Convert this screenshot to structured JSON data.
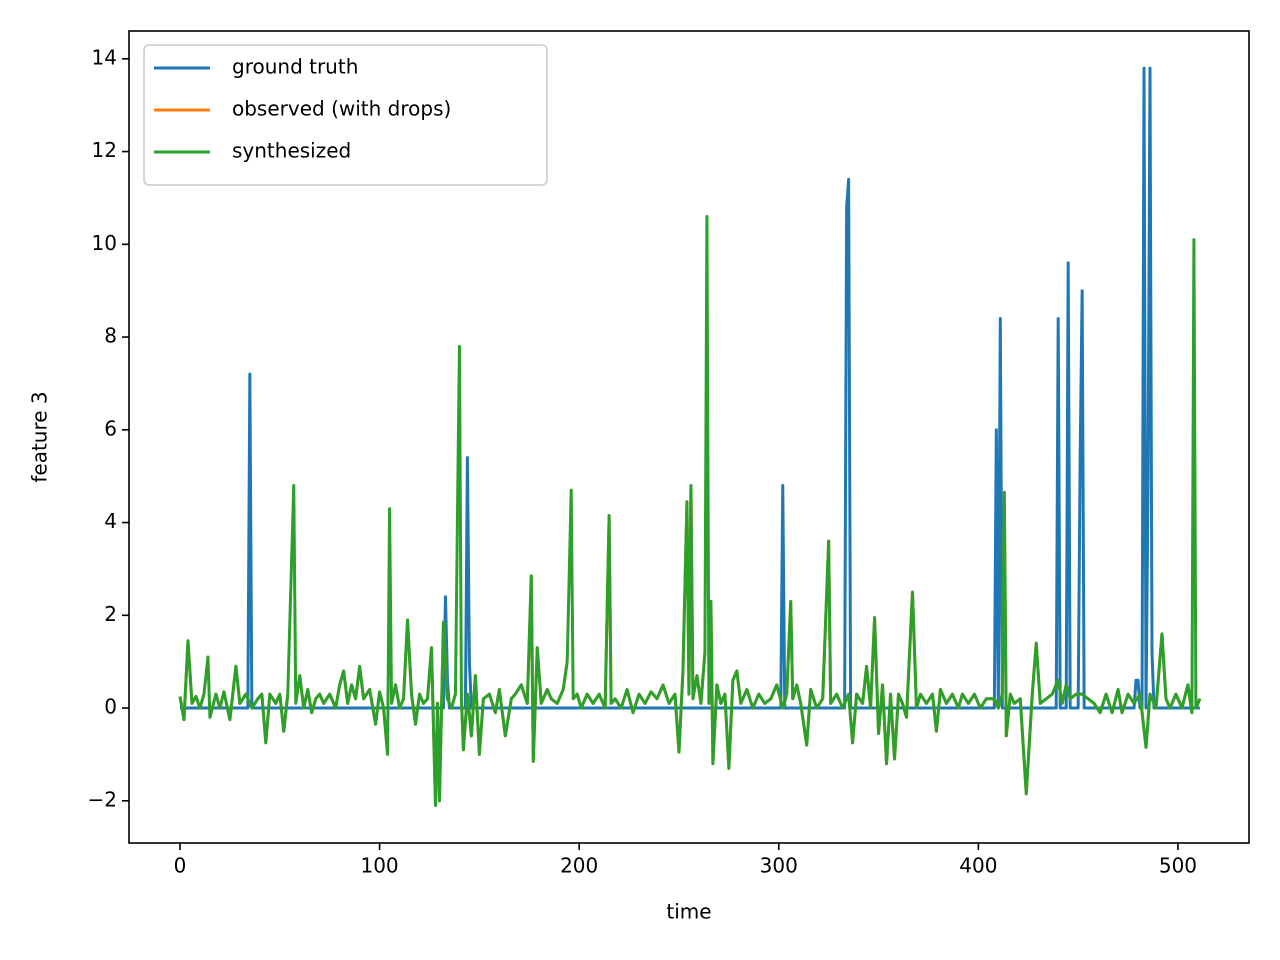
{
  "chart_data": {
    "type": "line",
    "x_label": "time",
    "y_label": "feature 3",
    "xlim": [
      -25.55,
      535.6
    ],
    "ylim": [
      -2.91,
      14.6
    ],
    "xticks": [
      0,
      100,
      200,
      300,
      400,
      500
    ],
    "yticks": [
      {
        "value": -2,
        "label": "−2"
      },
      0,
      2,
      4,
      6,
      8,
      10,
      12,
      14
    ],
    "legend": "upper left",
    "grid": false,
    "series": [
      {
        "name": "ground truth",
        "color": "#1f77b4",
        "x": [
          0,
          34,
          35,
          36,
          132,
          133,
          134,
          135,
          136,
          143,
          144,
          145,
          146,
          301,
          302,
          303,
          333,
          334,
          335,
          336,
          408,
          409,
          410,
          411,
          412,
          439,
          440,
          441,
          444,
          445,
          446,
          450,
          451,
          452,
          453,
          478,
          479,
          480,
          481,
          482,
          483,
          484,
          485,
          486,
          487,
          488,
          511
        ],
        "values": [
          0,
          0,
          7.2,
          0,
          0,
          2.4,
          0.6,
          0,
          0,
          0,
          5.4,
          1.0,
          0,
          0,
          4.8,
          0,
          0,
          10.8,
          11.4,
          0,
          0,
          6.0,
          0,
          8.4,
          0,
          0,
          8.4,
          0,
          0,
          9.6,
          0,
          0,
          5.4,
          9.0,
          0,
          0,
          0.6,
          0.6,
          0,
          0,
          13.8,
          0,
          4.8,
          13.8,
          1.2,
          0,
          0
        ]
      },
      {
        "name": "observed (with drops)",
        "color": "#ff7f0e",
        "x": [
          0,
          2,
          4,
          6,
          8,
          10,
          12,
          14,
          15,
          18,
          20,
          22,
          25,
          28,
          30,
          33,
          36,
          39,
          41,
          43,
          45,
          48,
          50,
          52,
          54,
          57,
          58,
          60,
          62,
          64,
          66,
          68,
          70,
          72,
          75,
          78,
          80,
          82,
          84,
          86,
          88,
          90,
          92,
          95,
          98,
          100,
          102,
          104,
          105,
          106,
          108,
          110,
          112,
          114,
          116,
          118,
          120,
          122,
          124,
          126,
          128,
          129,
          130,
          132,
          134,
          136,
          138,
          140,
          141,
          142,
          144,
          146,
          148,
          150,
          152,
          155,
          158,
          160,
          163,
          166,
          168,
          171,
          174,
          176,
          177,
          179,
          181,
          184,
          186,
          189,
          192,
          194,
          196,
          197,
          199,
          201,
          204,
          207,
          210,
          213,
          215,
          216,
          218,
          221,
          224,
          227,
          230,
          233,
          236,
          239,
          242,
          245,
          248,
          250,
          252,
          254,
          255,
          256,
          257,
          259,
          261,
          263,
          264,
          265,
          266,
          267,
          269,
          271,
          273,
          275,
          277,
          279,
          281,
          284,
          287,
          290,
          293,
          296,
          299,
          302,
          304,
          306,
          307,
          309,
          311,
          314,
          316,
          319,
          322,
          325,
          326,
          329,
          332,
          335,
          337,
          339,
          342,
          344,
          346,
          348,
          350,
          352,
          354,
          356,
          358,
          360,
          362,
          364,
          367,
          369,
          371,
          374,
          377,
          379,
          381,
          384,
          387,
          390,
          392,
          395,
          398,
          401,
          404,
          408,
          410,
          412,
          413,
          414,
          416,
          418,
          421,
          424,
          427,
          429,
          431,
          434,
          437,
          440,
          442,
          444,
          446,
          449,
          452,
          455,
          458,
          461,
          464,
          467,
          470,
          472,
          475,
          478,
          481,
          484,
          486,
          489,
          492,
          494,
          496,
          499,
          502,
          505,
          507,
          508,
          509,
          511
        ],
        "values": [
          0.25,
          -0.25,
          1.45,
          0.1,
          0.25,
          0.0,
          0.3,
          null,
          -0.2,
          0.3,
          0.0,
          0.35,
          -0.25,
          0.9,
          0.1,
          0.3,
          0.0,
          0.2,
          0.3,
          -0.75,
          0.3,
          0.1,
          0.3,
          -0.5,
          0.3,
          null,
          0.1,
          0.7,
          0.0,
          0.4,
          -0.1,
          0.2,
          0.3,
          0.1,
          0.3,
          0.0,
          0.5,
          0.8,
          0.1,
          0.5,
          0.2,
          0.9,
          0.2,
          0.4,
          -0.35,
          0.35,
          0.0,
          -1.0,
          null,
          0.1,
          0.5,
          0.0,
          0.2,
          1.9,
          0.3,
          -0.35,
          0.3,
          0.1,
          0.2,
          1.3,
          -2.1,
          0.1,
          -2.0,
          1.85,
          0.2,
          0.0,
          0.3,
          null,
          0.2,
          -0.9,
          0.3,
          -0.6,
          0.7,
          -1.0,
          0.2,
          0.3,
          -0.1,
          0.4,
          -0.6,
          0.2,
          0.3,
          0.5,
          0.1,
          2.85,
          -1.15,
          1.3,
          0.1,
          0.4,
          0.2,
          0.1,
          0.4,
          1.0,
          null,
          0.2,
          0.3,
          0.0,
          0.3,
          0.1,
          0.3,
          0.0,
          4.15,
          0.1,
          0.2,
          0.0,
          0.4,
          -0.1,
          0.3,
          0.1,
          0.35,
          0.2,
          0.5,
          0.1,
          0.3,
          -0.95,
          0.8,
          4.45,
          0.3,
          4.8,
          0.2,
          0.7,
          0.1,
          1.2,
          null,
          0.1,
          2.3,
          -1.2,
          0.5,
          0.1,
          0.3,
          -1.3,
          0.6,
          0.8,
          0.1,
          0.4,
          0.0,
          0.3,
          0.1,
          0.2,
          0.5,
          0.0,
          0.3,
          2.3,
          0.2,
          0.5,
          0.1,
          -0.8,
          0.4,
          0.0,
          0.2,
          3.6,
          0.1,
          0.3,
          0.0,
          0.3,
          -0.75,
          0.3,
          0.1,
          0.9,
          0.0,
          1.95,
          -0.55,
          0.5,
          -1.2,
          0.3,
          -1.1,
          0.3,
          0.1,
          -0.2,
          2.5,
          0.0,
          0.3,
          0.1,
          0.3,
          -0.5,
          0.4,
          0.1,
          0.3,
          0.0,
          0.3,
          0.1,
          0.3,
          0.0,
          0.2,
          0.2,
          0.0,
          0.3,
          4.65,
          -0.6,
          0.3,
          0.1,
          0.2,
          -1.85,
          0.3,
          1.4,
          0.1,
          0.2,
          0.3,
          0.6,
          0.1,
          0.5,
          0.2,
          0.3,
          0.3,
          0.2,
          0.1,
          -0.1,
          0.3,
          -0.1,
          0.4,
          -0.1,
          0.3,
          0.1,
          0.3,
          -0.85,
          0.3,
          0.0,
          1.6,
          0.2,
          0.0,
          0.3,
          0.0,
          0.5,
          -0.1,
          null,
          0.0,
          0.2
        ]
      },
      {
        "name": "synthesized",
        "color": "#2ca02c",
        "x": [
          0,
          2,
          4,
          6,
          8,
          10,
          12,
          14,
          15,
          18,
          20,
          22,
          25,
          28,
          30,
          33,
          36,
          39,
          41,
          43,
          45,
          48,
          50,
          52,
          54,
          57,
          58,
          60,
          62,
          64,
          66,
          68,
          70,
          72,
          75,
          78,
          80,
          82,
          84,
          86,
          88,
          90,
          92,
          95,
          98,
          100,
          102,
          104,
          105,
          106,
          108,
          110,
          112,
          114,
          116,
          118,
          120,
          122,
          124,
          126,
          128,
          129,
          130,
          132,
          134,
          136,
          138,
          140,
          141,
          142,
          144,
          146,
          148,
          150,
          152,
          155,
          158,
          160,
          163,
          166,
          168,
          171,
          174,
          176,
          177,
          179,
          181,
          184,
          186,
          189,
          192,
          194,
          196,
          197,
          199,
          201,
          204,
          207,
          210,
          213,
          215,
          216,
          218,
          221,
          224,
          227,
          230,
          233,
          236,
          239,
          242,
          245,
          248,
          250,
          252,
          254,
          255,
          256,
          257,
          259,
          261,
          263,
          264,
          265,
          266,
          267,
          269,
          271,
          273,
          275,
          277,
          279,
          281,
          284,
          287,
          290,
          293,
          296,
          299,
          302,
          304,
          306,
          307,
          309,
          311,
          314,
          316,
          319,
          322,
          325,
          326,
          329,
          332,
          335,
          337,
          339,
          342,
          344,
          346,
          348,
          350,
          352,
          354,
          356,
          358,
          360,
          362,
          364,
          367,
          369,
          371,
          374,
          377,
          379,
          381,
          384,
          387,
          390,
          392,
          395,
          398,
          401,
          404,
          408,
          410,
          412,
          413,
          414,
          416,
          418,
          421,
          424,
          427,
          429,
          431,
          434,
          437,
          440,
          442,
          444,
          446,
          449,
          452,
          455,
          458,
          461,
          464,
          467,
          470,
          472,
          475,
          478,
          481,
          484,
          486,
          489,
          492,
          494,
          496,
          499,
          502,
          505,
          507,
          508,
          509,
          511
        ],
        "values": [
          0.25,
          -0.25,
          1.45,
          0.1,
          0.25,
          0.0,
          0.3,
          1.1,
          -0.2,
          0.3,
          0.0,
          0.35,
          -0.25,
          0.9,
          0.1,
          0.3,
          0.0,
          0.2,
          0.3,
          -0.75,
          0.3,
          0.1,
          0.3,
          -0.5,
          0.3,
          4.8,
          0.1,
          0.7,
          0.0,
          0.4,
          -0.1,
          0.2,
          0.3,
          0.1,
          0.3,
          0.0,
          0.5,
          0.8,
          0.1,
          0.5,
          0.2,
          0.9,
          0.2,
          0.4,
          -0.35,
          0.35,
          0.0,
          -1.0,
          4.3,
          0.1,
          0.5,
          0.0,
          0.2,
          1.9,
          0.3,
          -0.35,
          0.3,
          0.1,
          0.2,
          1.3,
          -2.1,
          0.1,
          -2.0,
          1.85,
          0.2,
          0.0,
          0.3,
          7.8,
          0.2,
          -0.9,
          0.3,
          -0.6,
          0.7,
          -1.0,
          0.2,
          0.3,
          -0.1,
          0.4,
          -0.6,
          0.2,
          0.3,
          0.5,
          0.1,
          2.85,
          -1.15,
          1.3,
          0.1,
          0.4,
          0.2,
          0.1,
          0.4,
          1.0,
          4.7,
          0.2,
          0.3,
          0.0,
          0.3,
          0.1,
          0.3,
          0.0,
          4.15,
          0.1,
          0.2,
          0.0,
          0.4,
          -0.1,
          0.3,
          0.1,
          0.35,
          0.2,
          0.5,
          0.1,
          0.3,
          -0.95,
          0.8,
          4.45,
          0.3,
          4.8,
          0.2,
          0.7,
          0.1,
          1.2,
          10.6,
          0.1,
          2.3,
          -1.2,
          0.5,
          0.1,
          0.3,
          -1.3,
          0.6,
          0.8,
          0.1,
          0.4,
          0.0,
          0.3,
          0.1,
          0.2,
          0.5,
          0.0,
          0.3,
          2.3,
          0.2,
          0.5,
          0.1,
          -0.8,
          0.4,
          0.0,
          0.2,
          3.6,
          0.1,
          0.3,
          0.0,
          0.3,
          -0.75,
          0.3,
          0.1,
          0.9,
          0.0,
          1.95,
          -0.55,
          0.5,
          -1.2,
          0.3,
          -1.1,
          0.3,
          0.1,
          -0.2,
          2.5,
          0.0,
          0.3,
          0.1,
          0.3,
          -0.5,
          0.4,
          0.1,
          0.3,
          0.0,
          0.3,
          0.1,
          0.3,
          0.0,
          0.2,
          0.2,
          0.0,
          0.3,
          4.65,
          -0.6,
          0.3,
          0.1,
          0.2,
          -1.85,
          0.3,
          1.4,
          0.1,
          0.2,
          0.3,
          0.6,
          0.1,
          0.5,
          0.2,
          0.3,
          0.3,
          0.2,
          0.1,
          -0.1,
          0.3,
          -0.1,
          0.4,
          -0.1,
          0.3,
          0.1,
          0.3,
          -0.85,
          0.3,
          0.0,
          1.6,
          0.2,
          0.0,
          0.3,
          0.0,
          0.5,
          -0.1,
          10.1,
          0.0,
          0.2
        ]
      }
    ]
  }
}
